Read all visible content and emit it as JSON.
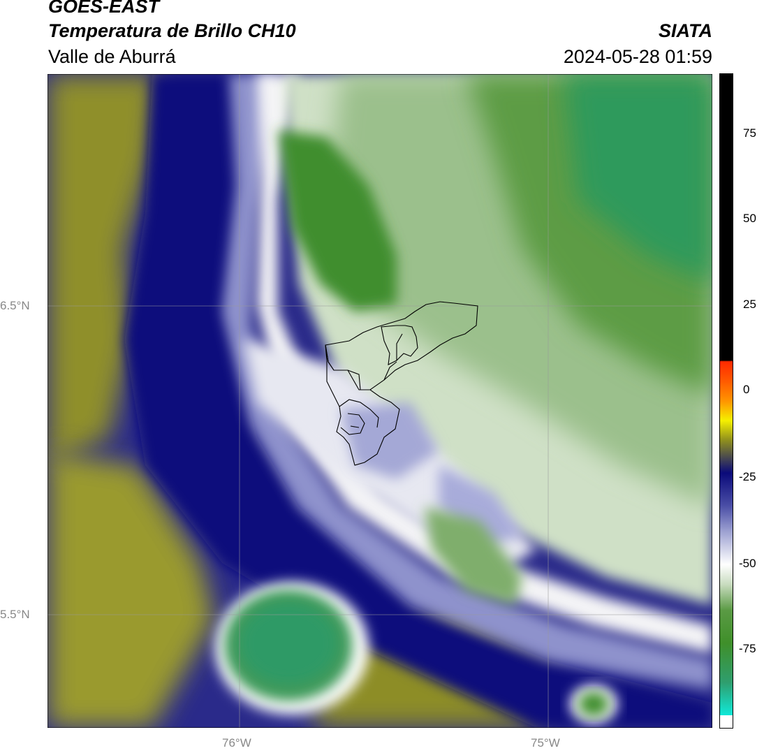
{
  "header": {
    "satellite": "GOES-EAST",
    "product": "Temperatura de Brillo CH10",
    "region": "Valle de Aburrá",
    "agency": "SIATA",
    "timestamp": "2024-05-28 01:59"
  },
  "map": {
    "lat_labels": [
      "6.5°N",
      "5.5°N"
    ],
    "lon_labels": [
      "76°W",
      "75°W"
    ],
    "gridline_color": "#9a9a9a",
    "boundary_color": "#000000"
  },
  "colorbar": {
    "ticks": [
      "75",
      "50",
      "25",
      "0",
      "-25",
      "-50",
      "-75"
    ],
    "colors": {
      "black": "#000000",
      "red": "#ff2a00",
      "orange": "#ff8c00",
      "yellow": "#f5f000",
      "olive": "#8f8f1e",
      "navy": "#0a0a7a",
      "lavender": "#9ea2d2",
      "white": "#ffffff",
      "light_green": "#c9dcc0",
      "green": "#3f8f2a",
      "teal_green": "#2f9e6e",
      "cyan": "#10e8d8"
    }
  }
}
